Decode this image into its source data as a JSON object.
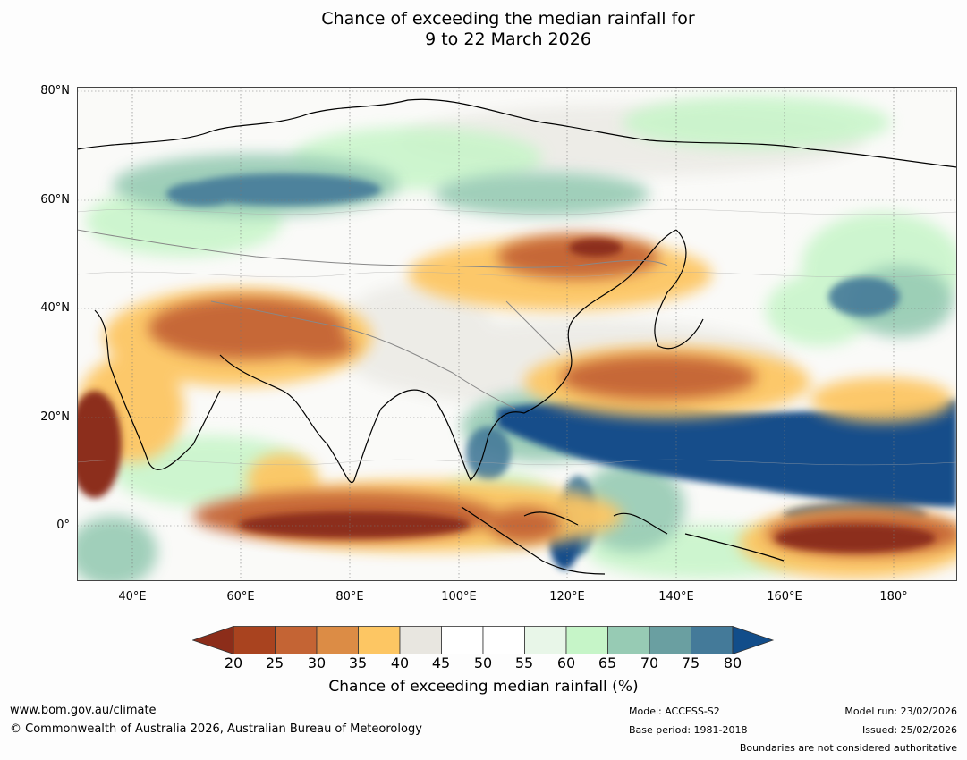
{
  "title_line1": "Chance of exceeding the median rainfall for",
  "title_line2": "9 to 22 March 2026",
  "lat_labels": [
    "80°N",
    "60°N",
    "40°N",
    "20°N",
    "0°"
  ],
  "lon_labels": [
    "40°E",
    "60°E",
    "80°E",
    "100°E",
    "120°E",
    "140°E",
    "160°E",
    "180°"
  ],
  "colorbar": {
    "ticks": [
      "20",
      "25",
      "30",
      "35",
      "40",
      "45",
      "50",
      "55",
      "60",
      "65",
      "70",
      "75",
      "80"
    ],
    "low_color": "#8c2d1a",
    "colors": [
      "#a9431f",
      "#c46434",
      "#dc8c45",
      "#fdc663",
      "#e8e6e0",
      "#ffffff",
      "#ffffff",
      "#e8f6e8",
      "#c6f5c8",
      "#97cbb4",
      "#6a9fa1",
      "#447a99"
    ],
    "high_color": "#124d8a",
    "label": "Chance of exceeding median rainfall (%)"
  },
  "footer": {
    "url": "www.bom.gov.au/climate",
    "copyright": "© Commonwealth of Australia 2026, Australian Bureau of Meteorology",
    "model": "Model: ACCESS-S2",
    "base_period": "Base period: 1981-2018",
    "model_run": "Model run: 23/02/2026",
    "issued": "Issued: 25/02/2026",
    "boundaries": "Boundaries are not considered authoritative"
  }
}
